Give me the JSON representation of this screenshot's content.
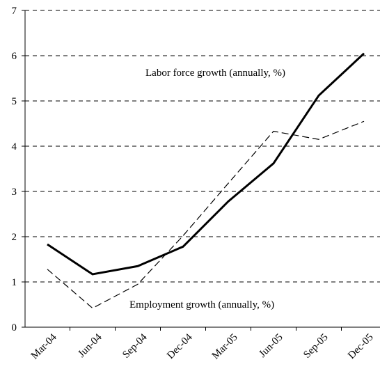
{
  "chart_data": {
    "type": "line",
    "categories": [
      "Mar-04",
      "Jun-04",
      "Sep-04",
      "Dec-04",
      "Mar-05",
      "Jun-05",
      "Sep-05",
      "Dec-05"
    ],
    "series": [
      {
        "name": "Labor force growth (annually, %)",
        "values": [
          1.83,
          1.17,
          1.35,
          1.78,
          2.78,
          3.62,
          5.12,
          6.05
        ],
        "color": "#000000",
        "style": "solid"
      },
      {
        "name": "Employment growth (annually, %)",
        "values": [
          1.28,
          0.42,
          0.95,
          2.02,
          3.18,
          4.33,
          4.15,
          4.55
        ],
        "color": "#000000",
        "style": "dashed"
      }
    ],
    "yticks": [
      "0",
      "1",
      "2",
      "3",
      "4",
      "5",
      "6",
      "7"
    ],
    "ylim": [
      0,
      7
    ],
    "grid": "horizontal dashed",
    "title": "",
    "xlabel": "",
    "ylabel": ""
  }
}
